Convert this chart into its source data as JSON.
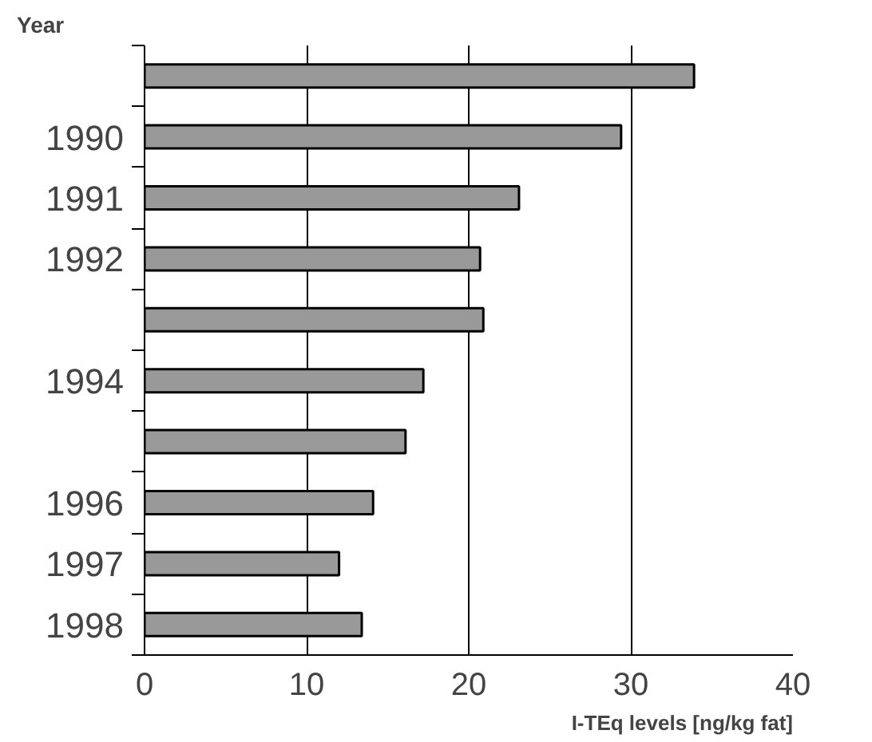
{
  "chart_data": {
    "type": "bar",
    "orientation": "horizontal",
    "ylabel": "Year",
    "xlabel": "I-TEq levels [ng/kg fat]",
    "categories": [
      null,
      "1990",
      "1991",
      "1992",
      null,
      "1994",
      null,
      "1996",
      "1997",
      "1998"
    ],
    "values": [
      33.9,
      29.4,
      23.1,
      20.7,
      20.9,
      17.2,
      16.1,
      14.1,
      12.0,
      13.4
    ],
    "color": "#999999",
    "xlim": [
      0,
      40
    ],
    "xticks": [
      0,
      10,
      20,
      30,
      40
    ],
    "grid": "x"
  }
}
